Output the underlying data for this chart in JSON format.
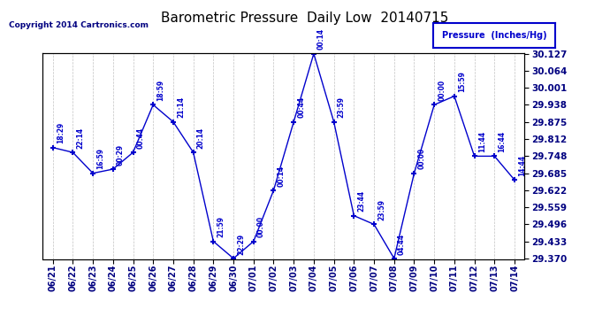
{
  "title": "Barometric Pressure  Daily Low  20140715",
  "copyright": "Copyright 2014 Cartronics.com",
  "legend_label": "Pressure  (Inches/Hg)",
  "dates": [
    "06/21",
    "06/22",
    "06/23",
    "06/24",
    "06/25",
    "06/26",
    "06/27",
    "06/28",
    "06/29",
    "06/30",
    "07/01",
    "07/02",
    "07/03",
    "07/04",
    "07/05",
    "07/06",
    "07/07",
    "07/08",
    "07/09",
    "07/10",
    "07/11",
    "07/12",
    "07/13",
    "07/14"
  ],
  "values": [
    29.78,
    29.762,
    29.685,
    29.7,
    29.762,
    29.938,
    29.875,
    29.762,
    29.433,
    29.37,
    29.433,
    29.622,
    29.875,
    30.127,
    29.875,
    29.528,
    29.496,
    29.37,
    29.685,
    29.938,
    29.97,
    29.748,
    29.748,
    29.66
  ],
  "times": [
    "18:29",
    "22:14",
    "16:59",
    "00:29",
    "00:44",
    "18:59",
    "21:14",
    "20:14",
    "21:59",
    "22:29",
    "00:00",
    "00:14",
    "00:44",
    "00:14",
    "23:59",
    "23:44",
    "23:59",
    "04:44",
    "00:00",
    "00:00",
    "15:59",
    "11:44",
    "16:44",
    "14:44"
  ],
  "ylim_min": 29.37,
  "ylim_max": 30.127,
  "yticks": [
    29.37,
    29.433,
    29.496,
    29.559,
    29.622,
    29.685,
    29.748,
    29.812,
    29.875,
    29.938,
    30.001,
    30.064,
    30.127
  ],
  "line_color": "#0000cc",
  "marker_color": "#0000cc",
  "background_color": "#ffffff",
  "grid_color": "#bbbbbb",
  "title_fontsize": 11,
  "legend_box_color": "#0000cc",
  "legend_text_color": "#0000cc",
  "tick_label_color": "#000080"
}
